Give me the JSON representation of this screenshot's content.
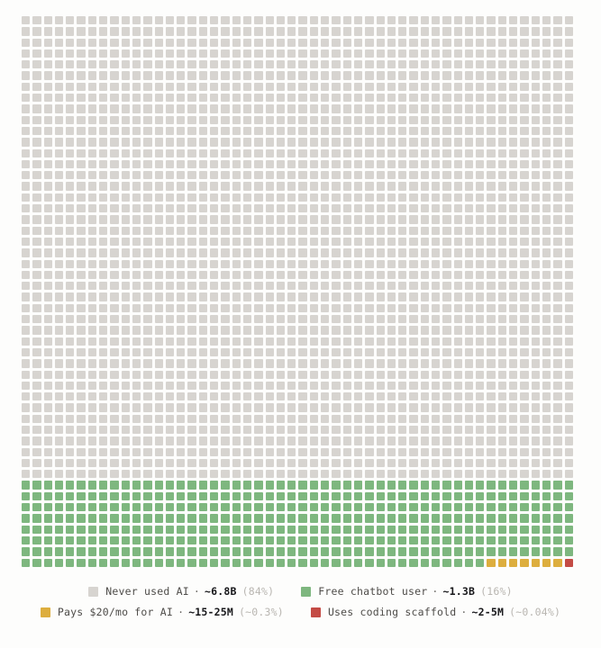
{
  "chart_data": {
    "type": "waffle",
    "title": "",
    "grid": {
      "columns": 50,
      "rows": 50,
      "total_cells": 2500,
      "fill_order": "left-to-right, top-to-bottom",
      "gap_color": "#fdfdfc"
    },
    "categories": [
      {
        "label": "Never used AI",
        "value": "~6.8B",
        "percent": "(84%)",
        "cells": 2100,
        "color": "#d7d4d0"
      },
      {
        "label": "Free chatbot user",
        "value": "~1.3B",
        "percent": "(16%)",
        "cells": 392,
        "color": "#7eb77f"
      },
      {
        "label": "Pays $20/mo for AI",
        "value": "~15-25M",
        "percent": "(~0.3%)",
        "cells": 7,
        "color": "#ddae3e"
      },
      {
        "label": "Uses coding scaffold",
        "value": "~2-5M",
        "percent": "(~0.04%)",
        "cells": 1,
        "color": "#c44b45"
      }
    ],
    "legend_position": "bottom",
    "legend_rows": [
      [
        0,
        1
      ],
      [
        2,
        3
      ]
    ]
  },
  "legend": {
    "separator": "·"
  }
}
